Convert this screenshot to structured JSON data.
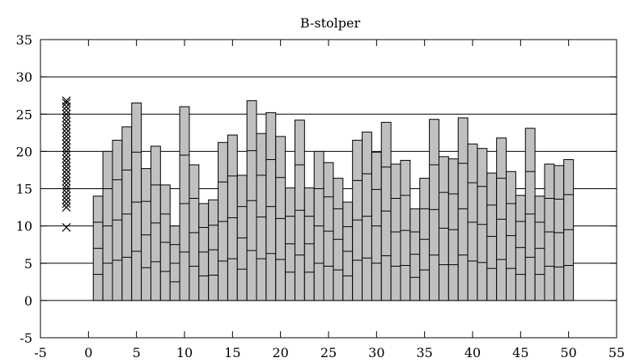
{
  "chart_data": {
    "type": "bar",
    "title": "B-stolper",
    "xlabel": "",
    "ylabel": "",
    "xlim": [
      -5,
      55
    ],
    "ylim": [
      -5,
      35
    ],
    "x_ticks": [
      -5,
      0,
      5,
      10,
      15,
      20,
      25,
      30,
      35,
      40,
      45,
      50,
      55
    ],
    "y_ticks": [
      -5,
      0,
      5,
      10,
      15,
      20,
      25,
      30,
      35
    ],
    "grid": "horizontal",
    "bar_color": "#c0c0c0",
    "edge_color": "#000000",
    "bars": {
      "x": [
        1,
        2,
        3,
        4,
        5,
        6,
        7,
        8,
        9,
        10,
        11,
        12,
        13,
        14,
        15,
        16,
        17,
        18,
        19,
        20,
        21,
        22,
        23,
        24,
        25,
        26,
        27,
        28,
        29,
        30,
        31,
        32,
        33,
        34,
        35,
        36,
        37,
        38,
        39,
        40,
        41,
        42,
        43,
        44,
        45,
        46,
        47,
        48,
        49,
        50
      ],
      "values": [
        14.0,
        20.0,
        21.5,
        23.3,
        26.5,
        17.7,
        20.7,
        15.5,
        10.0,
        26.0,
        18.2,
        13.0,
        13.5,
        21.2,
        22.2,
        16.8,
        26.8,
        22.4,
        25.2,
        22.0,
        15.1,
        24.2,
        15.1,
        20.0,
        18.5,
        16.4,
        13.2,
        21.5,
        22.6,
        19.9,
        23.9,
        18.3,
        18.8,
        12.3,
        16.4,
        24.3,
        19.3,
        19.0,
        24.5,
        21.0,
        20.4,
        17.1,
        21.8,
        17.3,
        14.1,
        23.1,
        14.0,
        18.3,
        18.1,
        18.9
      ],
      "internal_lines": [
        [
          3.5,
          7.0,
          10.5
        ],
        [
          5.0,
          10.0,
          15.0
        ],
        [
          5.4,
          10.8,
          16.2
        ],
        [
          5.8,
          11.6,
          17.5
        ],
        [
          6.6,
          13.2,
          19.9
        ],
        [
          4.4,
          8.8,
          13.3
        ],
        [
          5.2,
          10.4,
          15.5
        ],
        [
          3.9,
          7.8,
          11.6
        ],
        [
          2.5,
          5.0,
          7.5
        ],
        [
          6.5,
          13.0,
          19.5
        ],
        [
          4.6,
          9.1,
          13.7
        ],
        [
          3.3,
          6.5,
          9.8
        ],
        [
          3.4,
          6.8,
          10.1
        ],
        [
          5.3,
          10.6,
          15.9
        ],
        [
          5.6,
          11.1,
          16.7
        ],
        [
          4.2,
          8.4,
          12.6
        ],
        [
          6.7,
          13.4,
          20.1
        ],
        [
          5.6,
          11.2,
          16.8
        ],
        [
          6.3,
          12.6,
          18.9
        ],
        [
          5.5,
          11.0,
          16.5
        ],
        [
          3.8,
          7.6,
          11.3
        ],
        [
          6.1,
          12.1,
          18.2
        ],
        [
          3.8,
          7.6,
          11.3
        ],
        [
          5.0,
          10.0,
          15.0
        ],
        [
          4.6,
          9.3,
          13.9
        ],
        [
          4.1,
          8.2,
          12.3
        ],
        [
          3.3,
          6.6,
          9.9
        ],
        [
          5.4,
          10.8,
          16.1
        ],
        [
          5.7,
          11.3,
          17.0
        ],
        [
          5.0,
          10.0,
          14.9
        ],
        [
          6.0,
          12.0,
          17.9
        ],
        [
          4.6,
          9.2,
          13.7
        ],
        [
          4.7,
          9.4,
          14.1
        ],
        [
          3.1,
          6.2,
          9.2
        ],
        [
          4.1,
          8.2,
          12.3
        ],
        [
          6.1,
          12.2,
          18.2
        ],
        [
          4.8,
          9.7,
          14.5
        ],
        [
          4.8,
          9.5,
          14.3
        ],
        [
          6.1,
          12.3,
          18.4
        ],
        [
          5.3,
          10.5,
          15.8
        ],
        [
          5.1,
          10.2,
          15.3
        ],
        [
          4.3,
          8.6,
          12.8
        ],
        [
          5.5,
          10.9,
          16.4
        ],
        [
          4.3,
          8.7,
          13.0
        ],
        [
          3.5,
          7.1,
          10.6
        ],
        [
          5.8,
          11.6,
          17.3
        ],
        [
          3.5,
          7.0,
          10.5
        ],
        [
          4.6,
          9.2,
          13.7
        ],
        [
          4.5,
          9.1,
          13.6
        ],
        [
          4.7,
          9.5,
          14.2
        ]
      ]
    },
    "markers": {
      "symbol": "x",
      "x": -2.3,
      "y": [
        9.8,
        12.5,
        13.0,
        13.5,
        14.0,
        14.5,
        15.0,
        15.5,
        16.0,
        16.5,
        17.0,
        17.5,
        18.0,
        18.5,
        19.0,
        19.5,
        20.0,
        20.5,
        21.0,
        21.5,
        22.0,
        22.5,
        23.0,
        23.5,
        24.0,
        24.5,
        25.0,
        25.5,
        26.0,
        26.5,
        26.8
      ]
    }
  }
}
